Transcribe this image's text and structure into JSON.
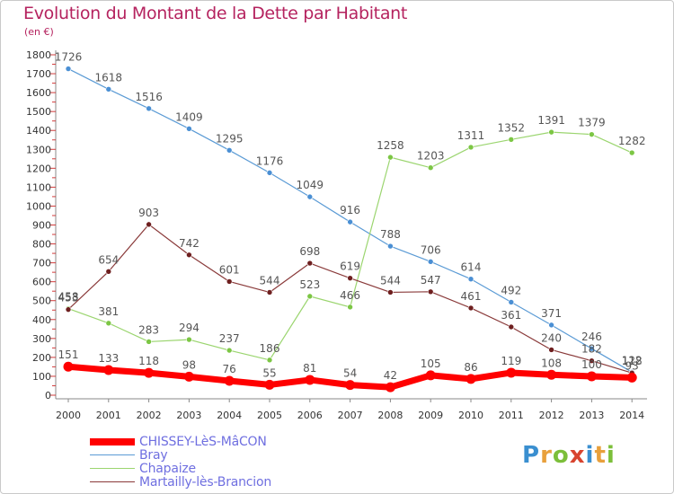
{
  "header": {
    "title": "Evolution du Montant de la Dette par Habitant",
    "unit": "(en €)"
  },
  "logo": {
    "text": "Proxiti",
    "colors": [
      "#3a8fd0",
      "#e8a03c",
      "#7cbf3a",
      "#d8442f",
      "#3a8fd0",
      "#e8a03c",
      "#7cbf3a"
    ]
  },
  "chart_data": {
    "type": "line",
    "title": "Evolution du Montant de la Dette par Habitant",
    "subtitle": "(en €)",
    "xlabel": "",
    "ylabel": "",
    "ylim": [
      0,
      1800
    ],
    "yticks": [
      0,
      100,
      200,
      300,
      400,
      500,
      600,
      700,
      800,
      900,
      1000,
      1100,
      1200,
      1300,
      1400,
      1500,
      1600,
      1700,
      1800
    ],
    "grid": false,
    "legend_position": "bottom-left",
    "categories": [
      "2000",
      "2001",
      "2002",
      "2003",
      "2004",
      "2005",
      "2006",
      "2007",
      "2008",
      "2009",
      "2010",
      "2011",
      "2012",
      "2013",
      "2014"
    ],
    "series": [
      {
        "name": "Bray",
        "color": "#5b9bd5",
        "marker": "#4a8fd4",
        "width": 1.2,
        "values": [
          1726,
          1618,
          1516,
          1409,
          1295,
          1176,
          1049,
          916,
          788,
          706,
          614,
          492,
          371,
          246,
          122
        ],
        "labels": [
          "1726",
          "1618",
          "1516",
          "1409",
          "1295",
          "1176",
          "1049",
          "916",
          "788",
          "706",
          "614",
          "492",
          "371",
          "246",
          "122"
        ]
      },
      {
        "name": "Chapaize",
        "color": "#9bd56f",
        "marker": "#7cc644",
        "width": 1.2,
        "values": [
          458,
          381,
          283,
          294,
          237,
          186,
          523,
          466,
          1258,
          1203,
          1311,
          1352,
          1391,
          1379,
          1282
        ],
        "labels": [
          "458",
          "381",
          "283",
          "294",
          "237",
          "186",
          "523",
          "466",
          "1258",
          "1203",
          "1311",
          "1352",
          "1391",
          "1379",
          "1282"
        ]
      },
      {
        "name": "Martailly-lès-Brancion",
        "color": "#8a3a3a",
        "marker": "#6e1f1f",
        "width": 1.2,
        "values": [
          453,
          654,
          903,
          742,
          601,
          544,
          698,
          619,
          544,
          547,
          461,
          361,
          240,
          182,
          118
        ],
        "labels": [
          "453",
          "654",
          "903",
          "742",
          "601",
          "544",
          "698",
          "619",
          "544",
          "547",
          "461",
          "361",
          "240",
          "182",
          "118"
        ]
      },
      {
        "name": "CHISSEY-LèS-MâCON",
        "color": "#ff0000",
        "marker": "#ff0000",
        "width": 7,
        "values": [
          151,
          133,
          118,
          98,
          76,
          55,
          81,
          54,
          42,
          105,
          86,
          119,
          108,
          100,
          93
        ],
        "labels": [
          "151",
          "133",
          "118",
          "98",
          "76",
          "55",
          "81",
          "54",
          "42",
          "105",
          "86",
          "119",
          "108",
          "100",
          "93"
        ]
      }
    ],
    "legend": [
      "CHISSEY-LèS-MâCON",
      "Bray",
      "Chapaize",
      "Martailly-lès-Brancion"
    ]
  }
}
